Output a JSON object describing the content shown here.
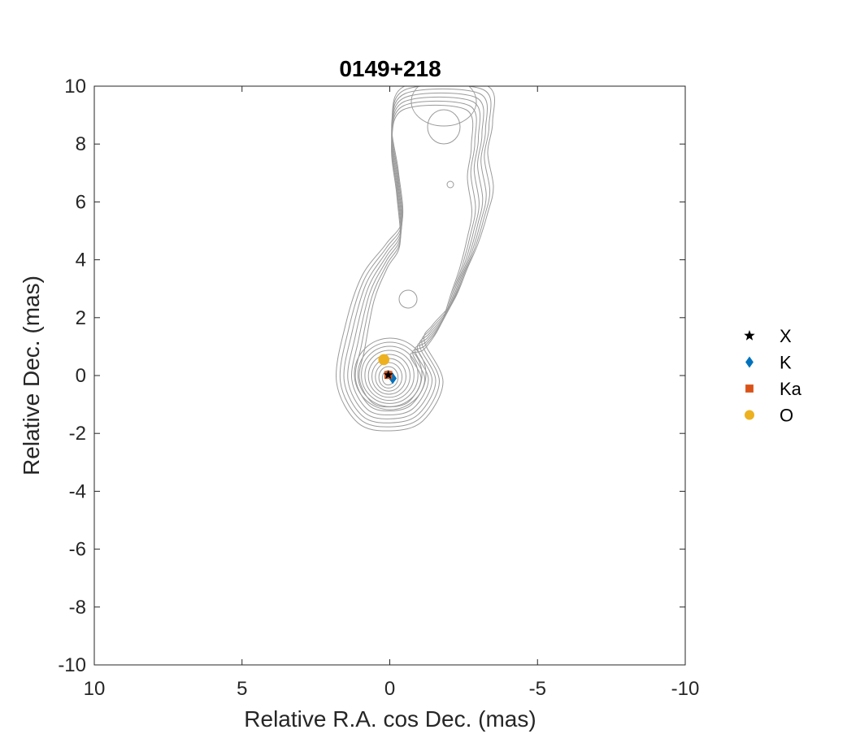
{
  "chart_data": {
    "type": "scatter",
    "title": "0149+218",
    "xlabel": "Relative R.A. cos Dec. (mas)",
    "ylabel": "Relative Dec. (mas)",
    "xlim": [
      10,
      -10
    ],
    "ylim": [
      -10,
      10
    ],
    "x_reversed": true,
    "xticks": [
      10,
      5,
      0,
      -5,
      -10
    ],
    "yticks": [
      -10,
      -8,
      -6,
      -4,
      -2,
      0,
      2,
      4,
      6,
      8,
      10
    ],
    "grid": false,
    "legend_position": "outside-right",
    "series": [
      {
        "name": "X",
        "marker": "star",
        "color": "#000000",
        "points": [
          {
            "x": 0.05,
            "y": 0.02
          }
        ]
      },
      {
        "name": "K",
        "marker": "diamond",
        "color": "#0072BD",
        "points": [
          {
            "x": -0.1,
            "y": -0.1
          }
        ]
      },
      {
        "name": "Ka",
        "marker": "square",
        "color": "#D95319",
        "points": [
          {
            "x": 0.05,
            "y": 0.02
          }
        ]
      },
      {
        "name": "O",
        "marker": "circle",
        "color": "#EDB120",
        "points": [
          {
            "x": 0.2,
            "y": 0.55
          }
        ]
      }
    ],
    "contour_color": "#9a9a9a"
  }
}
